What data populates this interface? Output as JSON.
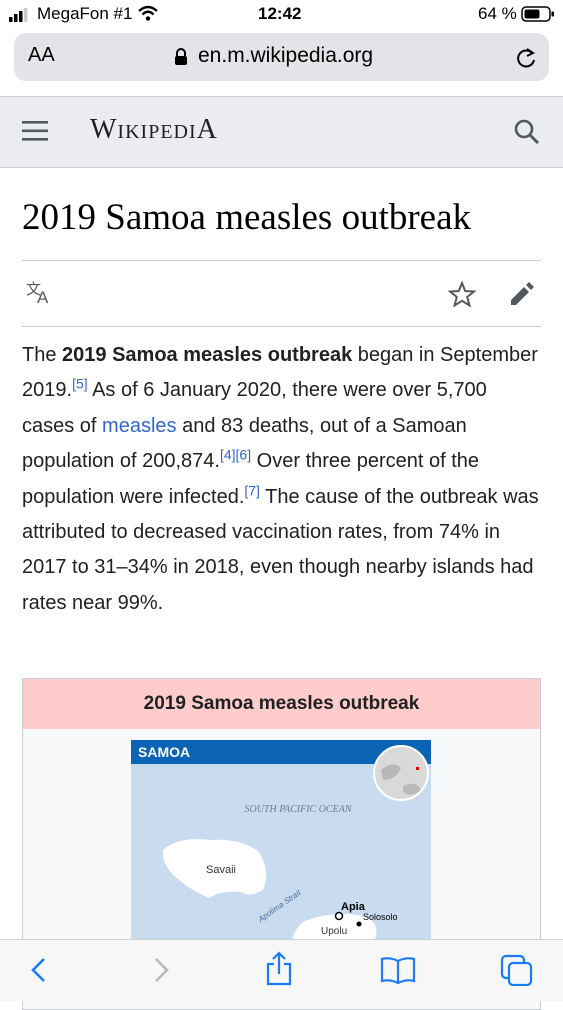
{
  "status_bar": {
    "carrier": "MegaFon #1",
    "time": "12:42",
    "battery": "64 %"
  },
  "browser": {
    "text_size_button": "AA",
    "url": "en.m.wikipedia.org"
  },
  "header": {
    "logo": "WikipediA"
  },
  "article": {
    "title": "2019 Samoa measles outbreak",
    "paragraph": [
      "The ",
      "2019 Samoa measles outbreak",
      " began in September 2019.",
      "[5]",
      " As of 6 January 2020, there were over 5,700 cases of ",
      "measles",
      " and 83 deaths, out of a Samoan population of 200,874.",
      "[4]",
      "[6]",
      " Over three percent of the population were infected.",
      "[7]",
      " The cause of the outbreak was attributed to decreased vaccination rates, from 74% in 2017 to 31–34% in 2018, even though nearby islands had rates near 99%."
    ]
  },
  "infobox": {
    "title": "2019 Samoa measles outbreak",
    "map": {
      "heading": "SAMOA",
      "ocean": "SOUTH PACIFIC OCEAN",
      "labels": [
        "Savaii",
        "Apolima Strait",
        "Apia",
        "Solosolo",
        "Upolu"
      ]
    }
  }
}
